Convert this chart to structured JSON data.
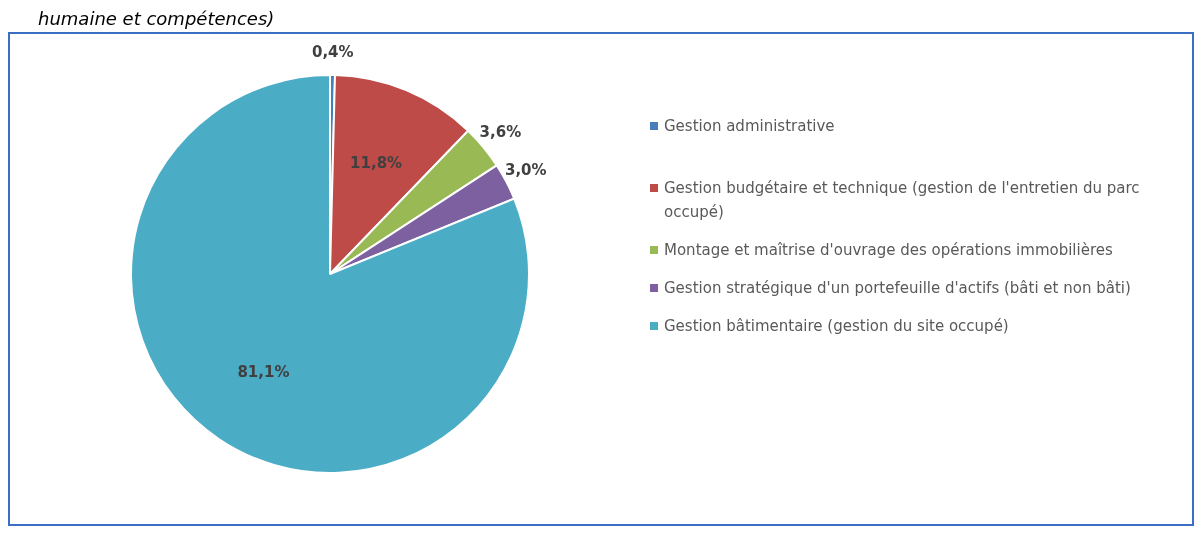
{
  "chart_data": {
    "type": "pie",
    "annotations": [
      "humaine et compétences)"
    ],
    "categories": [
      "Gestion administrative",
      "Gestion budgétaire et technique (gestion de l'entretien du parc occupé)",
      "Montage et maîtrise d'ouvrage des opérations immobilières",
      "Gestion stratégique d'un portefeuille d'actifs (bâti et non bâti)",
      "Gestion bâtimentaire (gestion du site occupé)"
    ],
    "values": [
      0.4,
      11.8,
      3.6,
      3.0,
      81.1
    ],
    "colors": [
      "#4a7ebb",
      "#be4b48",
      "#98b954",
      "#7d60a0",
      "#4bacc6"
    ],
    "value_labels": [
      "0,4%",
      "11,8%",
      "3,6%",
      "3,0%",
      "81,1%"
    ],
    "legend": "right"
  }
}
